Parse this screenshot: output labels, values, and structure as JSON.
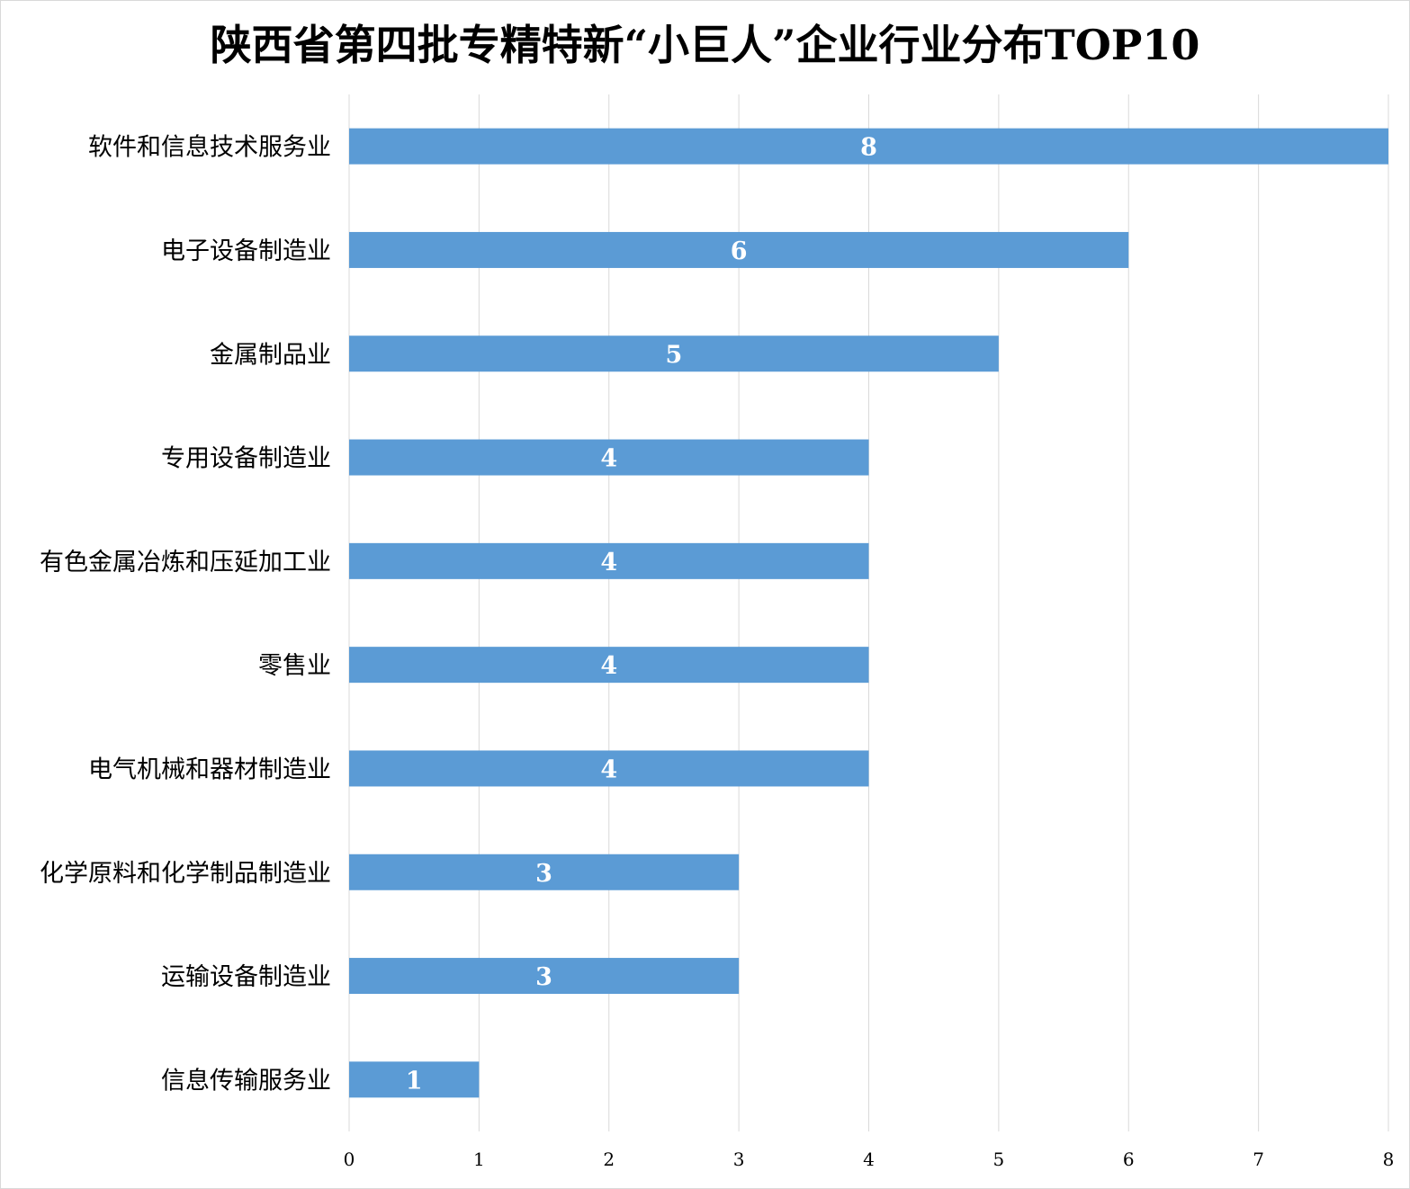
{
  "chart_data": {
    "type": "bar",
    "orientation": "horizontal",
    "title": "陕西省第四批专精特新“小巨人”企业行业分布TOP10",
    "categories": [
      "软件和信息技术服务业",
      "电子设备制造业",
      "金属制品业",
      "专用设备制造业",
      "有色金属冶炼和压延加工业",
      "零售业",
      "电气机械和器材制造业",
      "化学原料和化学制品制造业",
      "运输设备制造业",
      "信息传输服务业"
    ],
    "values": [
      8,
      6,
      5,
      4,
      4,
      4,
      4,
      3,
      3,
      1
    ],
    "data_labels": [
      "8",
      "6",
      "5",
      "4",
      "4",
      "4",
      "4",
      "3",
      "3",
      "1"
    ],
    "x_ticks": [
      "0",
      "1",
      "2",
      "3",
      "4",
      "5",
      "6",
      "7",
      "8"
    ],
    "xlim": [
      0,
      8
    ],
    "grid": true,
    "legend": "none",
    "bar_color": "#5b9bd5",
    "grid_color": "#d9d9d9",
    "label_color": "#ffffff"
  }
}
